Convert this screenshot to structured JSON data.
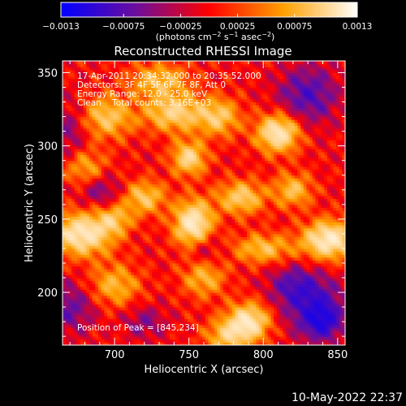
{
  "chart_data": {
    "type": "heatmap",
    "title": "Reconstructed RHESSI Image",
    "xlabel": "Heliocentric X (arcsec)",
    "ylabel": "Heliocentric Y (arcsec)",
    "xlim": [
      665,
      855
    ],
    "ylim": [
      164,
      358
    ],
    "x_ticks": [
      700,
      750,
      800,
      850
    ],
    "y_ticks": [
      200,
      250,
      300,
      350
    ],
    "x_tick_labels": [
      "700",
      "750",
      "800",
      "850"
    ],
    "y_tick_labels": [
      "200",
      "250",
      "300",
      "350"
    ],
    "colorbar": {
      "range": [
        -0.0013,
        0.0013
      ],
      "ticks": [
        -0.0013,
        -0.00075,
        -0.00025,
        0.00025,
        0.00075,
        0.0013
      ],
      "tick_labels": [
        "−0.0013",
        "−0.00075",
        "−0.00025",
        "0.00025",
        "0.00075",
        "0.0013"
      ],
      "colors": [
        "#0000ff",
        "#6a0e9e",
        "#ff0000",
        "#ffa000",
        "#ffffff"
      ]
    },
    "annotations": [
      "17-Apr-2011 20:34:32.000 to 20:35:52.000",
      "Detectors: 3F 4F 5F 6F 7F 8F, Att 0",
      "Energy Range: 12.0 - 25.0 keV",
      "Clean    Total counts: 3.16E+03"
    ],
    "peak_label": "Position of Peak = [845,234]",
    "peak": [
      845,
      234
    ],
    "blobs": [
      {
        "x": 753,
        "y": 247,
        "v": 1.0,
        "sx": 9,
        "sy": 11
      },
      {
        "x": 844,
        "y": 236,
        "v": 1.0,
        "sx": 12,
        "sy": 9
      },
      {
        "x": 678,
        "y": 240,
        "v": 0.95,
        "sx": 14,
        "sy": 10
      },
      {
        "x": 810,
        "y": 309,
        "v": 0.95,
        "sx": 10,
        "sy": 9
      },
      {
        "x": 790,
        "y": 180,
        "v": 0.9,
        "sx": 10,
        "sy": 9
      },
      {
        "x": 750,
        "y": 292,
        "v": 0.75,
        "sx": 8,
        "sy": 8
      },
      {
        "x": 740,
        "y": 323,
        "v": 0.7,
        "sx": 14,
        "sy": 9
      },
      {
        "x": 695,
        "y": 320,
        "v": 0.6,
        "sx": 12,
        "sy": 10
      },
      {
        "x": 785,
        "y": 265,
        "v": 0.65,
        "sx": 11,
        "sy": 8
      },
      {
        "x": 720,
        "y": 265,
        "v": 0.6,
        "sx": 10,
        "sy": 8
      },
      {
        "x": 800,
        "y": 230,
        "v": 0.55,
        "sx": 14,
        "sy": 7
      },
      {
        "x": 760,
        "y": 210,
        "v": 0.5,
        "sx": 10,
        "sy": 9
      },
      {
        "x": 700,
        "y": 205,
        "v": 0.5,
        "sx": 12,
        "sy": 10
      },
      {
        "x": 820,
        "y": 270,
        "v": 0.55,
        "sx": 9,
        "sy": 8
      },
      {
        "x": 730,
        "y": 345,
        "v": 0.55,
        "sx": 14,
        "sy": 8
      },
      {
        "x": 770,
        "y": 320,
        "v": 0.6,
        "sx": 10,
        "sy": 9
      },
      {
        "x": 680,
        "y": 285,
        "v": 0.45,
        "sx": 10,
        "sy": 9
      },
      {
        "x": 775,
        "y": 170,
        "v": 0.55,
        "sx": 10,
        "sy": 8
      },
      {
        "x": 700,
        "y": 250,
        "v": 0.5,
        "sx": 8,
        "sy": 7
      },
      {
        "x": 835,
        "y": 190,
        "v": -0.55,
        "sx": 14,
        "sy": 14
      },
      {
        "x": 840,
        "y": 180,
        "v": -0.5,
        "sx": 8,
        "sy": 8
      },
      {
        "x": 670,
        "y": 190,
        "v": -0.4,
        "sx": 12,
        "sy": 12
      },
      {
        "x": 830,
        "y": 335,
        "v": -0.5,
        "sx": 14,
        "sy": 14
      },
      {
        "x": 690,
        "y": 270,
        "v": -0.35,
        "sx": 10,
        "sy": 8
      },
      {
        "x": 820,
        "y": 205,
        "v": -0.4,
        "sx": 12,
        "sy": 10
      },
      {
        "x": 720,
        "y": 180,
        "v": -0.3,
        "sx": 10,
        "sy": 8
      },
      {
        "x": 760,
        "y": 230,
        "v": -0.3,
        "sx": 8,
        "sy": 8
      },
      {
        "x": 670,
        "y": 310,
        "v": -0.3,
        "sx": 8,
        "sy": 14
      }
    ]
  },
  "footer": {
    "timestamp": "10-May-2022 22:37"
  }
}
